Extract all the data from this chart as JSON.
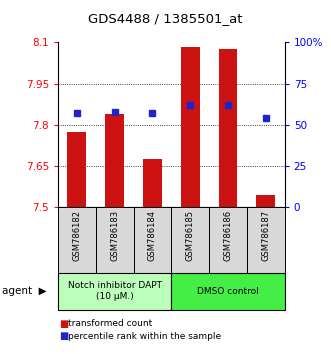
{
  "title": "GDS4488 / 1385501_at",
  "categories": [
    "GSM786182",
    "GSM786183",
    "GSM786184",
    "GSM786185",
    "GSM786186",
    "GSM786187"
  ],
  "bar_values": [
    7.775,
    7.84,
    7.675,
    8.085,
    8.075,
    7.545
  ],
  "bar_bottom": 7.5,
  "blue_percentile": [
    57,
    58,
    57,
    62,
    62,
    54
  ],
  "ylim_left": [
    7.5,
    8.1
  ],
  "ylim_right": [
    0,
    100
  ],
  "yticks_left": [
    7.5,
    7.65,
    7.8,
    7.95,
    8.1
  ],
  "yticks_right": [
    0,
    25,
    50,
    75,
    100
  ],
  "ytick_labels_left": [
    "7.5",
    "7.65",
    "7.8",
    "7.95",
    "8.1"
  ],
  "ytick_labels_right": [
    "0",
    "25",
    "50",
    "75",
    "100%"
  ],
  "bar_color": "#cc1111",
  "blue_color": "#2222cc",
  "agent_groups": [
    {
      "label": "Notch inhibitor DAPT\n(10 μM.)",
      "indices": [
        0,
        1,
        2
      ],
      "color": "#bbffbb"
    },
    {
      "label": "DMSO control",
      "indices": [
        3,
        4,
        5
      ],
      "color": "#44ee44"
    }
  ],
  "legend_items": [
    {
      "color": "#cc1111",
      "label": " transformed count"
    },
    {
      "color": "#2222cc",
      "label": " percentile rank within the sample"
    }
  ],
  "agent_label": "agent",
  "bar_width": 0.5
}
